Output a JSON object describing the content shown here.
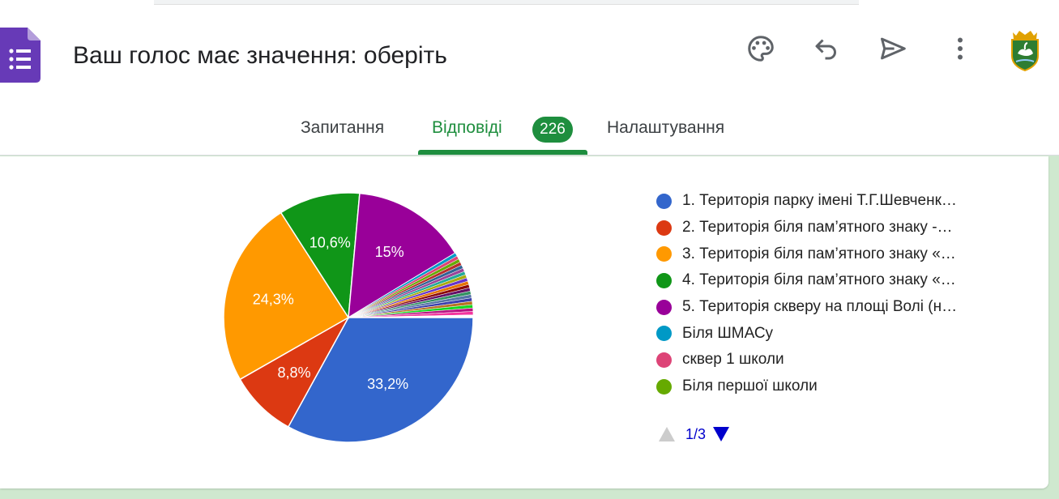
{
  "header": {
    "title": "Ваш голос має значення: оберіть",
    "icons": [
      "forms-icon",
      "palette-icon",
      "undo-icon",
      "send-icon",
      "more-vert-icon",
      "crest-icon"
    ]
  },
  "tabs": {
    "questions": "Запитання",
    "responses": "Відповіді",
    "responses_count": "226",
    "settings": "Налаштування",
    "active": "responses"
  },
  "colors": {
    "accent": "#1e8e3e",
    "forms_purple": "#673ab7",
    "page_background": "#cfe8cf"
  },
  "chart_data": {
    "type": "pie",
    "slices": [
      {
        "label": "1. Територія парку імені Т.Г.Шевченк…",
        "value": 33.2,
        "value_label": "33,2%",
        "color": "#3366cc"
      },
      {
        "label": "2. Територія біля пам’ятного знаку -…",
        "value": 8.8,
        "value_label": "8,8%",
        "color": "#dc3912"
      },
      {
        "label": "3. Територія біля пам’ятного знаку «…",
        "value": 24.3,
        "value_label": "24,3%",
        "color": "#ff9900"
      },
      {
        "label": "4. Територія біля пам’ятного знаку «…",
        "value": 10.6,
        "value_label": "10,6%",
        "color": "#109618"
      },
      {
        "label": "5. Територія скверу на площі Волі (н…",
        "value": 15.0,
        "value_label": "15%",
        "color": "#990099"
      },
      {
        "label": "Біля ШМАСу",
        "value": 0.44,
        "value_label": "",
        "color": "#0099c6"
      },
      {
        "label": "сквер 1 школи",
        "value": 0.44,
        "value_label": "",
        "color": "#dd4477"
      },
      {
        "label": "Біля першої школи",
        "value": 0.44,
        "value_label": "",
        "color": "#66aa00"
      }
    ],
    "other_slices": {
      "count": 16,
      "value_each": 0.44,
      "colors": [
        "#b82e2e",
        "#316395",
        "#994499",
        "#22aa99",
        "#aaaa11",
        "#6633cc",
        "#e67300",
        "#8b0707",
        "#651067",
        "#329262",
        "#5574a6",
        "#3b3eac",
        "#b77322",
        "#16d620",
        "#b91383",
        "#f4359e"
      ]
    },
    "remainder_value": 0.34,
    "remainder_color": "#ffffff",
    "legend_position": "right"
  },
  "legend_pager": {
    "text": "1/3",
    "up_color": "#cccccc",
    "down_color": "#0000cc"
  }
}
